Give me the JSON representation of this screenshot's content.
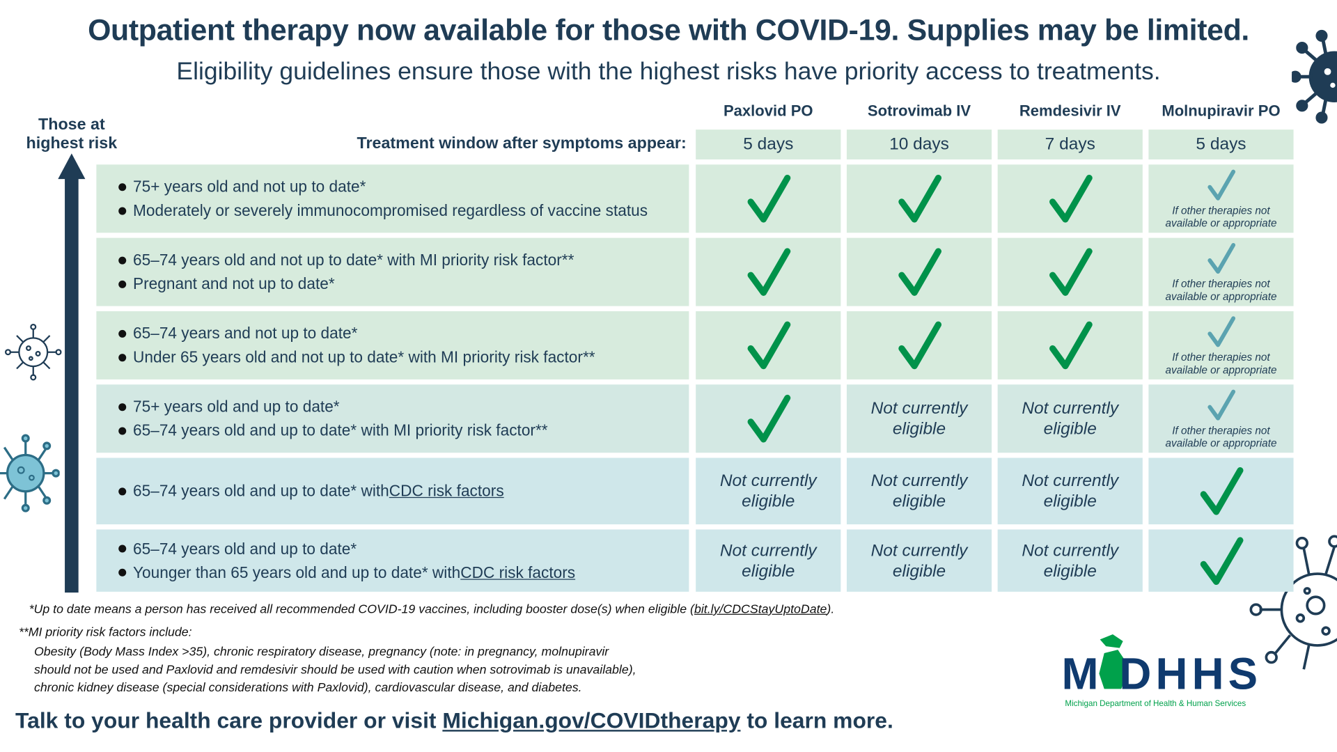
{
  "header": {
    "title": "Outpatient therapy now available for those with COVID-19. Supplies may be limited.",
    "subtitle": "Eligibility guidelines ensure those with the highest risks have priority access to treatments."
  },
  "risk_label": [
    "Those at",
    "highest risk"
  ],
  "window_label": "Treatment window after symptoms appear:",
  "treatments": [
    {
      "name": "Paxlovid PO",
      "window": "5 days"
    },
    {
      "name": "Sotrovimab IV",
      "window": "10 days"
    },
    {
      "name": "Remdesivir IV",
      "window": "7 days"
    },
    {
      "name": "Molnupiravir PO",
      "window": "5 days"
    }
  ],
  "labels": {
    "not_eligible": [
      "Not currently",
      "eligible"
    ],
    "alt_note": [
      "If other therapies not",
      "available or appropriate"
    ]
  },
  "colors": {
    "row_green": "#d7ebdd",
    "row_mid": "#d3e8e3",
    "row_blue": "#cfe7ea",
    "check": "#00924a",
    "alt_check": "#5ba3b0",
    "navy": "#1f3c55"
  },
  "rows": [
    {
      "bullets": [
        {
          "text": "75+ years old and not up to date*"
        },
        {
          "text": "Moderately or severely immunocompromised regardless of vaccine status"
        }
      ],
      "cells": [
        "check",
        "check",
        "check",
        "alt"
      ]
    },
    {
      "bullets": [
        {
          "text": "65–74 years old and not up to date* with MI priority risk factor**"
        },
        {
          "text": "Pregnant and not up to date*"
        }
      ],
      "cells": [
        "check",
        "check",
        "check",
        "alt"
      ]
    },
    {
      "bullets": [
        {
          "text": "65–74 years and not up to date*"
        },
        {
          "text": "Under 65 years old and not up to date* with MI priority risk factor**"
        }
      ],
      "cells": [
        "check",
        "check",
        "check",
        "alt"
      ]
    },
    {
      "bullets": [
        {
          "text": "75+ years old and up to date*"
        },
        {
          "text": "65–74 years old and up to date* with MI priority risk factor**"
        }
      ],
      "cells": [
        "check",
        "no",
        "no",
        "alt"
      ]
    },
    {
      "bullets": [
        {
          "text": "65–74 years old and up to date* with ",
          "link": "CDC risk factors"
        }
      ],
      "cells": [
        "no",
        "no",
        "no",
        "check"
      ]
    },
    {
      "bullets": [
        {
          "text": "65–74 years old and up to date*"
        },
        {
          "text": "Younger than 65 years old and up to date* with ",
          "link": "CDC risk factors"
        }
      ],
      "cells": [
        "no",
        "no",
        "no",
        "check"
      ]
    }
  ],
  "footnotes": {
    "uptodate_pre": "*Up to date means a person has received all recommended COVID-19 vaccines, including booster dose(s) when eligible (",
    "uptodate_link": "bit.ly/CDCStayUptoDate",
    "uptodate_post": ").",
    "mi_heading": "**MI priority risk factors include:",
    "mi_lines": [
      "Obesity (Body Mass Index >35), chronic respiratory disease, pregnancy (note: in pregnancy, molnupiravir",
      "should not be used and Paxlovid and remdesivir should be used with caution when sotrovimab is unavailable),",
      "chronic kidney disease (special considerations with Paxlovid), cardiovascular disease, and diabetes."
    ]
  },
  "bottom": {
    "pre": "Talk to your health care provider or visit ",
    "link": "Michigan.gov/COVIDtherapy",
    "post": " to learn more."
  },
  "logo": {
    "text": "MDHHS",
    "tagline": "Michigan Department of Health & Human Services"
  }
}
